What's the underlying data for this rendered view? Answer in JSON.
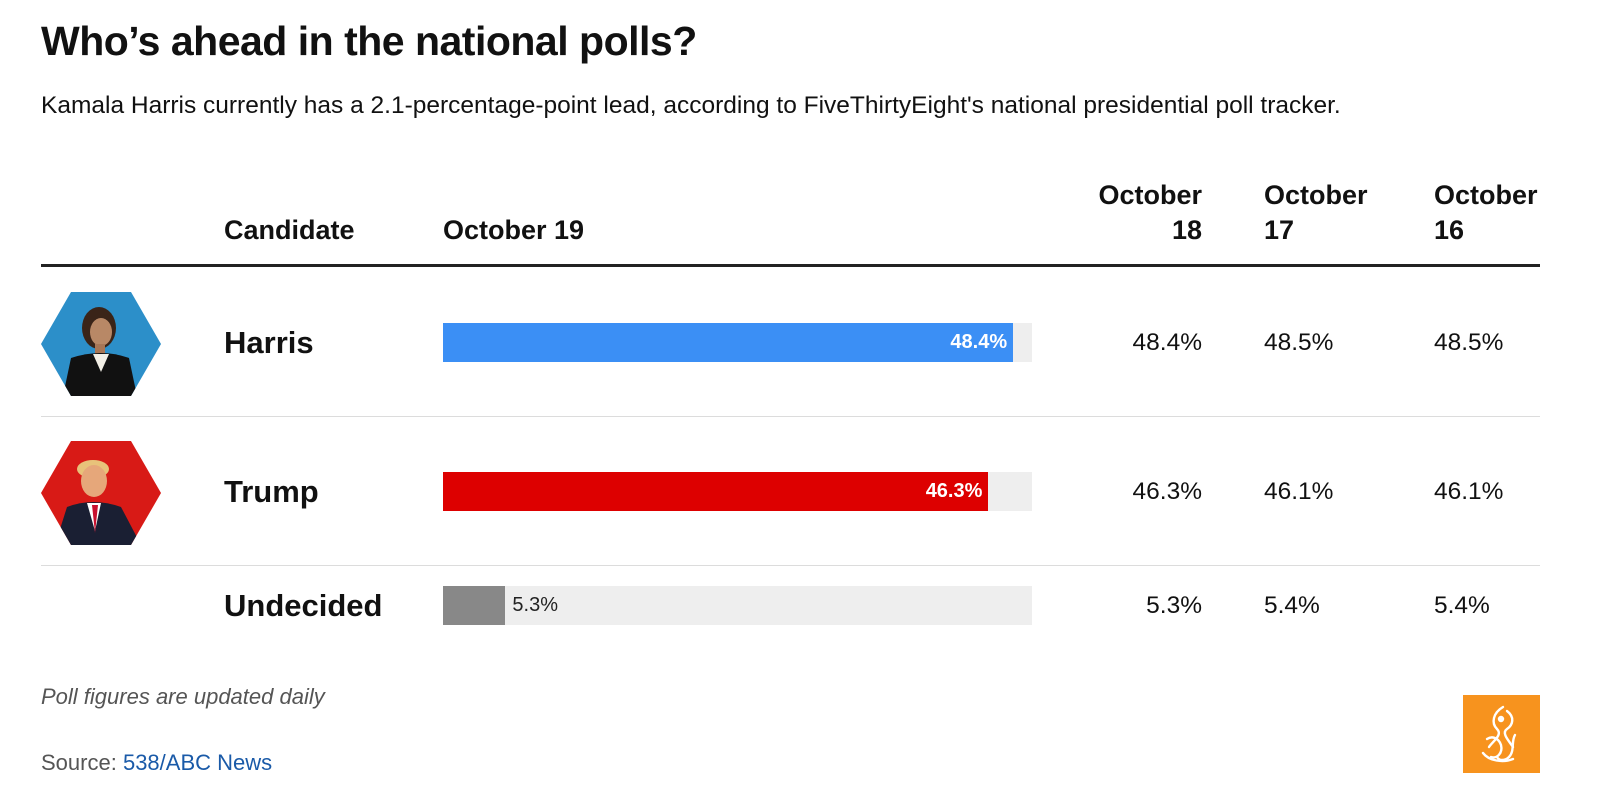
{
  "title": "Who’s ahead in the national polls?",
  "subtitle": "Kamala Harris currently has a 2.1-percentage-point lead, according to FiveThirtyEight's national presidential poll tracker.",
  "headers": {
    "candidate": "Candidate",
    "oct19": "October 19",
    "oct18": [
      "October",
      "18"
    ],
    "oct17": [
      "October",
      "17"
    ],
    "oct16": [
      "October",
      "16"
    ]
  },
  "chart_data": {
    "type": "bar",
    "title": "Who’s ahead in the national polls?",
    "categories": [
      "Harris",
      "Trump",
      "Undecided"
    ],
    "values": [
      48.4,
      46.3,
      5.3
    ],
    "xlim": [
      0,
      50
    ],
    "series_label": "October 19",
    "colors": [
      "#3b8ff5",
      "#dd0000",
      "#888888"
    ],
    "labels": [
      "48.4%",
      "46.3%",
      "5.3%"
    ]
  },
  "rows": [
    {
      "name": "Harris",
      "value": 48.4,
      "label": "48.4%",
      "color": "#3b8ff5",
      "avatar_bg": "#2c8fc9",
      "oct18": "48.4%",
      "oct17": "48.5%",
      "oct16": "48.5%"
    },
    {
      "name": "Trump",
      "value": 46.3,
      "label": "46.3%",
      "color": "#dd0000",
      "avatar_bg": "#d81a16",
      "oct18": "46.3%",
      "oct17": "46.1%",
      "oct16": "46.1%"
    },
    {
      "name": "Undecided",
      "value": 5.3,
      "label": "5.3%",
      "color": "#888888",
      "oct18": "5.3%",
      "oct17": "5.4%",
      "oct16": "5.4%"
    }
  ],
  "note": "Poll figures are updated daily",
  "source": {
    "prefix": "Source:",
    "link_text": "538/ABC News"
  },
  "logo": {
    "color": "#f7931e",
    "icon": "al-jazeera-logo-icon"
  }
}
